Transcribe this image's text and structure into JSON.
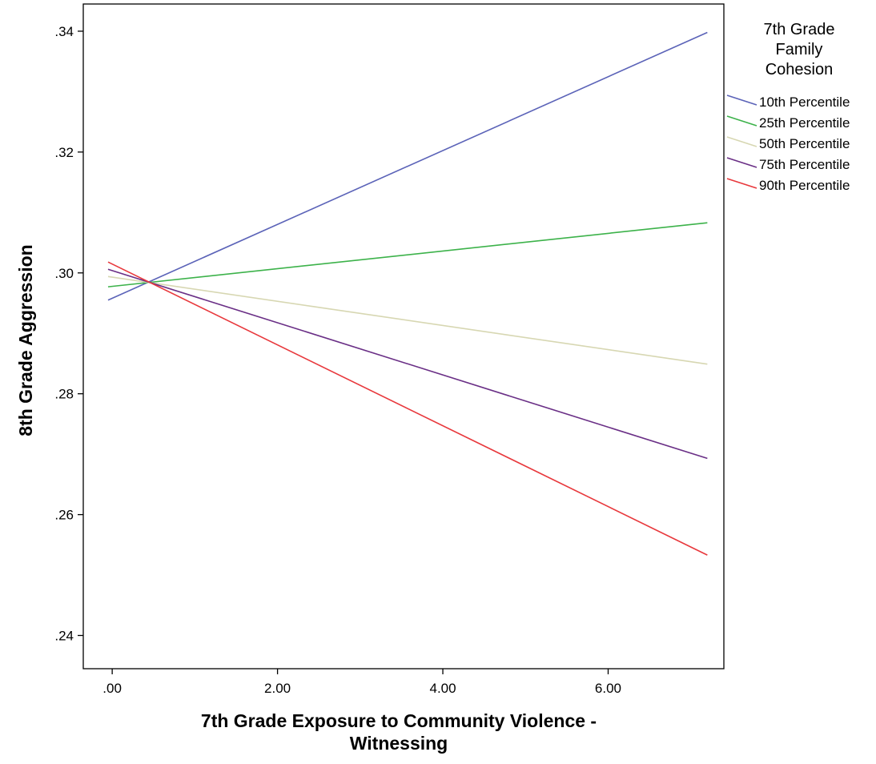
{
  "chart_data": {
    "type": "line",
    "title": "",
    "xlabel": [
      "7th Grade Exposure to Community Violence -",
      "Witnessing"
    ],
    "ylabel": "8th Grade Aggression",
    "xlim": [
      -0.35,
      7.4
    ],
    "ylim": [
      0.2345,
      0.3445
    ],
    "x_ticks": [
      0,
      2,
      4,
      6
    ],
    "x_tick_labels": [
      ".00",
      "2.00",
      "4.00",
      "6.00"
    ],
    "y_ticks": [
      0.24,
      0.26,
      0.28,
      0.3,
      0.32,
      0.34
    ],
    "y_tick_labels": [
      ".24",
      ".26",
      ".28",
      ".30",
      ".32",
      ".34"
    ],
    "grid": false,
    "legend": {
      "title": [
        "7th Grade",
        "Family",
        "Cohesion"
      ],
      "placement": "right"
    },
    "series": [
      {
        "name": "10th Percentile",
        "color": "#5b63b8",
        "x": [
          -0.05,
          7.2
        ],
        "y": [
          0.2955,
          0.3398
        ]
      },
      {
        "name": "25th Percentile",
        "color": "#3cb24a",
        "x": [
          -0.05,
          7.2
        ],
        "y": [
          0.2977,
          0.3083
        ]
      },
      {
        "name": "50th Percentile",
        "color": "#d7d7b2",
        "x": [
          -0.05,
          7.2
        ],
        "y": [
          0.2994,
          0.2849
        ]
      },
      {
        "name": "75th Percentile",
        "color": "#6a2f86",
        "x": [
          -0.05,
          7.2
        ],
        "y": [
          0.3006,
          0.2693
        ]
      },
      {
        "name": "90th Percentile",
        "color": "#e8383c",
        "x": [
          -0.05,
          7.2
        ],
        "y": [
          0.3018,
          0.2533
        ]
      }
    ]
  }
}
